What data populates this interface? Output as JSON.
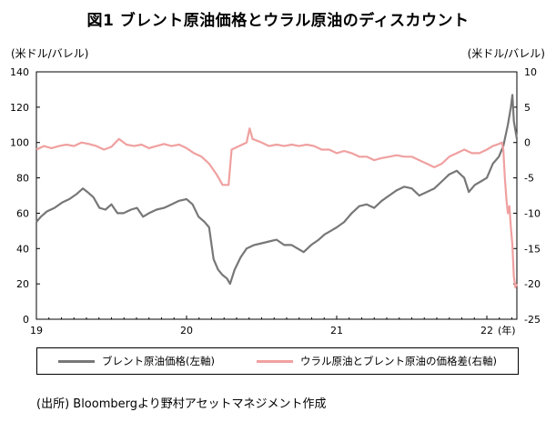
{
  "chart_data": {
    "type": "line",
    "title": "図1 ブレント原油価格とウラル原油のディスカウント",
    "left_axis_unit": "(米ドル/バレル)",
    "right_axis_unit": "(米ドル/バレル)",
    "x_ticks": [
      "19",
      "20",
      "21",
      "22"
    ],
    "x_suffix": "(年)",
    "y_left_ticks": [
      0,
      20,
      40,
      60,
      80,
      100,
      120,
      140
    ],
    "y_right_ticks": [
      -25,
      -20,
      -15,
      -10,
      -5,
      0,
      5,
      10
    ],
    "y_left_lim": [
      0,
      140
    ],
    "y_right_lim": [
      -25,
      10
    ],
    "x_lim": [
      2019.0,
      2022.2
    ],
    "grid": false,
    "legend_position": "bottom",
    "series": [
      {
        "name": "ブレント原油価格(左軸)",
        "axis": "left",
        "color": "#777777",
        "points": [
          [
            2019.0,
            55
          ],
          [
            2019.03,
            58
          ],
          [
            2019.07,
            61
          ],
          [
            2019.12,
            63
          ],
          [
            2019.17,
            66
          ],
          [
            2019.22,
            68
          ],
          [
            2019.27,
            71
          ],
          [
            2019.31,
            74
          ],
          [
            2019.34,
            72
          ],
          [
            2019.38,
            69
          ],
          [
            2019.42,
            63
          ],
          [
            2019.46,
            62
          ],
          [
            2019.5,
            65
          ],
          [
            2019.54,
            60
          ],
          [
            2019.58,
            60
          ],
          [
            2019.63,
            62
          ],
          [
            2019.67,
            63
          ],
          [
            2019.71,
            58
          ],
          [
            2019.75,
            60
          ],
          [
            2019.8,
            62
          ],
          [
            2019.85,
            63
          ],
          [
            2019.9,
            65
          ],
          [
            2019.95,
            67
          ],
          [
            2020.0,
            68
          ],
          [
            2020.04,
            65
          ],
          [
            2020.08,
            58
          ],
          [
            2020.12,
            55
          ],
          [
            2020.15,
            52
          ],
          [
            2020.18,
            34
          ],
          [
            2020.21,
            28
          ],
          [
            2020.24,
            25
          ],
          [
            2020.27,
            23
          ],
          [
            2020.29,
            20
          ],
          [
            2020.32,
            28
          ],
          [
            2020.36,
            35
          ],
          [
            2020.4,
            40
          ],
          [
            2020.45,
            42
          ],
          [
            2020.5,
            43
          ],
          [
            2020.55,
            44
          ],
          [
            2020.6,
            45
          ],
          [
            2020.65,
            42
          ],
          [
            2020.7,
            42
          ],
          [
            2020.74,
            40
          ],
          [
            2020.78,
            38
          ],
          [
            2020.83,
            42
          ],
          [
            2020.88,
            45
          ],
          [
            2020.92,
            48
          ],
          [
            2020.96,
            50
          ],
          [
            2021.0,
            52
          ],
          [
            2021.05,
            55
          ],
          [
            2021.1,
            60
          ],
          [
            2021.15,
            64
          ],
          [
            2021.2,
            65
          ],
          [
            2021.25,
            63
          ],
          [
            2021.3,
            67
          ],
          [
            2021.35,
            70
          ],
          [
            2021.4,
            73
          ],
          [
            2021.45,
            75
          ],
          [
            2021.5,
            74
          ],
          [
            2021.55,
            70
          ],
          [
            2021.6,
            72
          ],
          [
            2021.65,
            74
          ],
          [
            2021.7,
            78
          ],
          [
            2021.75,
            82
          ],
          [
            2021.8,
            84
          ],
          [
            2021.85,
            80
          ],
          [
            2021.88,
            72
          ],
          [
            2021.92,
            76
          ],
          [
            2021.96,
            78
          ],
          [
            2022.0,
            80
          ],
          [
            2022.04,
            88
          ],
          [
            2022.08,
            92
          ],
          [
            2022.11,
            98
          ],
          [
            2022.14,
            110
          ],
          [
            2022.16,
            120
          ],
          [
            2022.17,
            127
          ],
          [
            2022.18,
            112
          ],
          [
            2022.2,
            102
          ]
        ]
      },
      {
        "name": "ウラル原油とブレント原油の価格差(右軸)",
        "axis": "right",
        "color": "#f0a0a0",
        "points": [
          [
            2019.0,
            -1.0
          ],
          [
            2019.05,
            -0.5
          ],
          [
            2019.1,
            -0.8
          ],
          [
            2019.15,
            -0.5
          ],
          [
            2019.2,
            -0.3
          ],
          [
            2019.25,
            -0.5
          ],
          [
            2019.3,
            0.0
          ],
          [
            2019.35,
            -0.2
          ],
          [
            2019.4,
            -0.5
          ],
          [
            2019.45,
            -1.0
          ],
          [
            2019.5,
            -0.6
          ],
          [
            2019.55,
            0.5
          ],
          [
            2019.6,
            -0.3
          ],
          [
            2019.65,
            -0.5
          ],
          [
            2019.7,
            -0.3
          ],
          [
            2019.75,
            -0.8
          ],
          [
            2019.8,
            -0.5
          ],
          [
            2019.85,
            -0.2
          ],
          [
            2019.9,
            -0.5
          ],
          [
            2019.95,
            -0.3
          ],
          [
            2020.0,
            -0.8
          ],
          [
            2020.05,
            -1.5
          ],
          [
            2020.1,
            -2.0
          ],
          [
            2020.15,
            -3.0
          ],
          [
            2020.2,
            -4.5
          ],
          [
            2020.24,
            -6.0
          ],
          [
            2020.28,
            -6.0
          ],
          [
            2020.3,
            -1.0
          ],
          [
            2020.35,
            -0.5
          ],
          [
            2020.4,
            0.0
          ],
          [
            2020.42,
            2.0
          ],
          [
            2020.44,
            0.5
          ],
          [
            2020.5,
            0.0
          ],
          [
            2020.55,
            -0.5
          ],
          [
            2020.6,
            -0.3
          ],
          [
            2020.65,
            -0.5
          ],
          [
            2020.7,
            -0.3
          ],
          [
            2020.75,
            -0.5
          ],
          [
            2020.8,
            -0.3
          ],
          [
            2020.85,
            -0.5
          ],
          [
            2020.9,
            -1.0
          ],
          [
            2020.95,
            -1.0
          ],
          [
            2021.0,
            -1.5
          ],
          [
            2021.05,
            -1.2
          ],
          [
            2021.1,
            -1.5
          ],
          [
            2021.15,
            -2.0
          ],
          [
            2021.2,
            -2.0
          ],
          [
            2021.25,
            -2.5
          ],
          [
            2021.3,
            -2.2
          ],
          [
            2021.35,
            -2.0
          ],
          [
            2021.4,
            -1.8
          ],
          [
            2021.45,
            -2.0
          ],
          [
            2021.5,
            -2.0
          ],
          [
            2021.55,
            -2.5
          ],
          [
            2021.6,
            -3.0
          ],
          [
            2021.65,
            -3.5
          ],
          [
            2021.7,
            -3.0
          ],
          [
            2021.75,
            -2.0
          ],
          [
            2021.8,
            -1.5
          ],
          [
            2021.85,
            -1.0
          ],
          [
            2021.9,
            -1.5
          ],
          [
            2021.95,
            -1.5
          ],
          [
            2022.0,
            -1.0
          ],
          [
            2022.04,
            -0.5
          ],
          [
            2022.08,
            -0.2
          ],
          [
            2022.1,
            0.0
          ],
          [
            2022.11,
            -1.0
          ],
          [
            2022.12,
            -5.0
          ],
          [
            2022.13,
            -8.0
          ],
          [
            2022.14,
            -10.0
          ],
          [
            2022.15,
            -9.0
          ],
          [
            2022.16,
            -12.0
          ],
          [
            2022.17,
            -14.5
          ],
          [
            2022.18,
            -19.0
          ],
          [
            2022.19,
            -20.5
          ],
          [
            2022.2,
            -20.0
          ]
        ]
      }
    ]
  },
  "footer": {
    "source": "(出所) Bloombergより野村アセットマネジメント作成"
  }
}
